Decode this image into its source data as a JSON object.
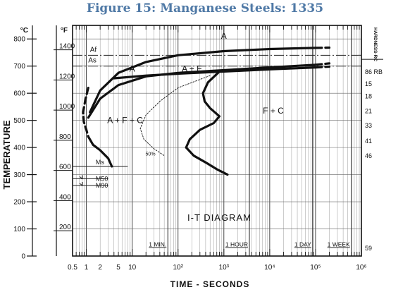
{
  "title": "Figure 15: Manganese Steels: 1335",
  "chart_data": {
    "type": "line",
    "title": "I-T DIAGRAM",
    "xlabel": "TIME - SECONDS",
    "ylabel": "TEMPERATURE",
    "x_scale": "log",
    "xlim": [
      0.5,
      1000000
    ],
    "ylim_c": [
      0,
      850
    ],
    "units": {
      "celsius": "°C",
      "fahrenheit": "°F"
    },
    "x_ticks": [
      {
        "v": 0.5,
        "label": "0.5"
      },
      {
        "v": 1,
        "label": "1"
      },
      {
        "v": 2,
        "label": "2"
      },
      {
        "v": 5,
        "label": "5"
      },
      {
        "v": 10,
        "label": "10"
      },
      {
        "v": 100,
        "label": "10²"
      },
      {
        "v": 1000,
        "label": "10³"
      },
      {
        "v": 10000,
        "label": "10⁴"
      },
      {
        "v": 100000,
        "label": "10⁵"
      },
      {
        "v": 1000000,
        "label": "10⁶"
      }
    ],
    "c_ticks": [
      0,
      100,
      200,
      300,
      400,
      500,
      600,
      700,
      800
    ],
    "f_ticks": [
      200,
      400,
      600,
      800,
      1000,
      1200,
      1400
    ],
    "time_markers": [
      {
        "label": "1 MIN.",
        "t": 60
      },
      {
        "label": "1 HOUR",
        "t": 3600
      },
      {
        "label": "1 DAY",
        "t": 86400
      },
      {
        "label": "1 WEEK",
        "t": 604800
      }
    ],
    "hardness": {
      "label": "HARDNESS-RC",
      "values": [
        {
          "c": 680,
          "label": "86 RB"
        },
        {
          "c": 635,
          "label": "15"
        },
        {
          "c": 590,
          "label": "18"
        },
        {
          "c": 535,
          "label": "21"
        },
        {
          "c": 482,
          "label": "33"
        },
        {
          "c": 425,
          "label": "41"
        },
        {
          "c": 370,
          "label": "46"
        },
        {
          "c": 30,
          "label": "59"
        }
      ]
    },
    "critical_temps": [
      {
        "name": "Af",
        "c": 740
      },
      {
        "name": "As",
        "c": 700
      },
      {
        "name": "Ms",
        "c": 330
      },
      {
        "name": "M50",
        "c": 285
      },
      {
        "name": "M90",
        "c": 260
      }
    ],
    "regions": [
      {
        "label": "A",
        "t": 1000,
        "c": 800
      },
      {
        "label": "A",
        "t": 10,
        "c": 680
      },
      {
        "label": "A + F",
        "t": 200,
        "c": 680
      },
      {
        "label": "F + C",
        "t": 12000,
        "c": 525
      },
      {
        "label": "A + F + C",
        "t": 7,
        "c": 490
      }
    ],
    "series": [
      {
        "style": "solid",
        "x": [
          1.2,
          2,
          5,
          20,
          100,
          1000,
          10000,
          100000
        ],
        "y": [
          530,
          610,
          675,
          715,
          740,
          755,
          763,
          767
        ]
      },
      {
        "style": "dashed",
        "x": [
          100000,
          200000
        ],
        "y": [
          767,
          768
        ]
      },
      {
        "style": "solid",
        "x": [
          1.1,
          2,
          5,
          20,
          100,
          1000,
          10000,
          100000
        ],
        "y": [
          510,
          580,
          630,
          662,
          675,
          685,
          695,
          705
        ]
      },
      {
        "style": "dashed",
        "x": [
          100000,
          200000
        ],
        "y": [
          705,
          710
        ]
      },
      {
        "style": "solid",
        "x": [
          4,
          20,
          100,
          1000,
          10000,
          100000
        ],
        "y": [
          655,
          665,
          672,
          680,
          688,
          695
        ]
      },
      {
        "style": "dashed",
        "x": [
          100000,
          200000
        ],
        "y": [
          695,
          698
        ]
      },
      {
        "style": "dashed",
        "x": [
          1.1,
          0.95,
          0.85,
          0.88,
          1,
          1.1
        ],
        "y": [
          620,
          575,
          530,
          495,
          465,
          440
        ]
      },
      {
        "style": "solid",
        "x": [
          1.1,
          1.4,
          2,
          3,
          3.6
        ],
        "y": [
          440,
          410,
          390,
          360,
          330
        ]
      },
      {
        "style": "solid",
        "x": [
          800,
          450,
          350,
          380,
          500,
          800,
          600,
          300,
          180,
          150,
          220,
          400,
          700,
          1200
        ],
        "y": [
          680,
          640,
          600,
          570,
          545,
          515,
          490,
          465,
          430,
          400,
          370,
          345,
          320,
          300
        ]
      },
      {
        "style": "dotted",
        "x": [
          500,
          100,
          40,
          20,
          15,
          18,
          30,
          50
        ],
        "y": [
          665,
          620,
          570,
          520,
          470,
          430,
          395,
          370
        ]
      }
    ],
    "annotations": [
      {
        "label": "50%",
        "t": 25,
        "c": 370
      }
    ]
  }
}
